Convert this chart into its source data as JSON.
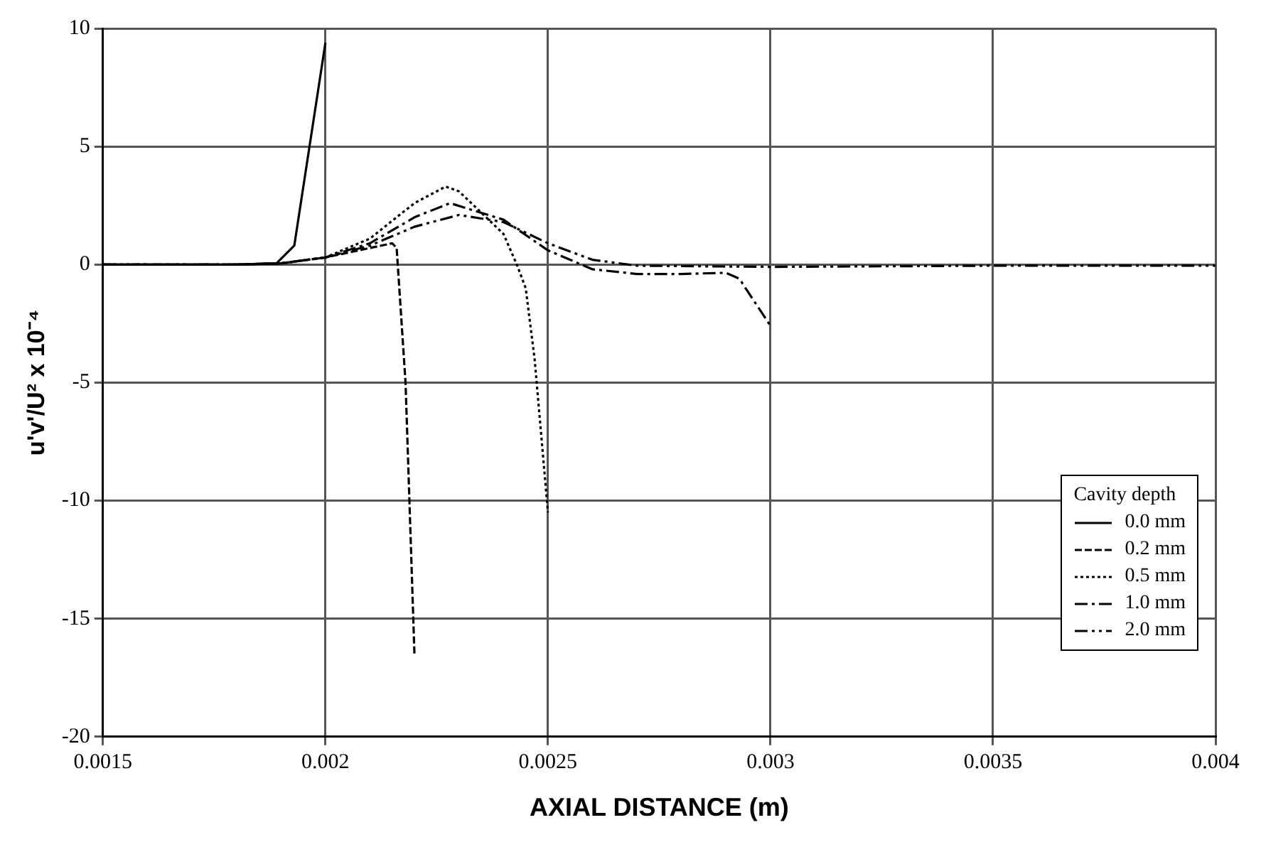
{
  "chart_data": {
    "type": "line",
    "xlabel": "AXIAL DISTANCE (m)",
    "ylabel": "u'v'/U² x 10⁻⁴",
    "legend_title": "Cavity depth",
    "xlim": [
      0.0015,
      0.004
    ],
    "xticks": [
      0.0015,
      0.002,
      0.0025,
      0.003,
      0.0035,
      0.004
    ],
    "ylim": [
      -20,
      10
    ],
    "yticks": [
      -20,
      -15,
      -10,
      -5,
      0,
      5,
      10
    ],
    "grid": true,
    "legend": "bottom right",
    "marker": "none",
    "series": [
      {
        "name": "0.0 mm",
        "color": "#000000",
        "line_style": "solid",
        "x": [
          0.0015,
          0.0018,
          0.00189,
          0.00193,
          0.002
        ],
        "values": [
          0,
          0,
          0.05,
          0.8,
          9.4
        ]
      },
      {
        "name": "0.2 mm",
        "color": "#000000",
        "line_style": "dashed",
        "x": [
          0.0015,
          0.0018,
          0.0019,
          0.002,
          0.0021,
          0.00215,
          0.00216,
          0.00218,
          0.0022
        ],
        "values": [
          0,
          0,
          0.05,
          0.3,
          0.7,
          0.9,
          0.7,
          -5,
          -16.5
        ]
      },
      {
        "name": "0.5 mm",
        "color": "#000000",
        "line_style": "dotted",
        "x": [
          0.0015,
          0.0018,
          0.0019,
          0.002,
          0.0021,
          0.0022,
          0.00227,
          0.0023,
          0.0024,
          0.00243,
          0.00245,
          0.00247,
          0.0025
        ],
        "values": [
          0,
          0,
          0.05,
          0.3,
          1.1,
          2.6,
          3.3,
          3.1,
          1.3,
          0,
          -1,
          -4,
          -10.5
        ]
      },
      {
        "name": "1.0 mm",
        "color": "#000000",
        "line_style": "dashdot",
        "x": [
          0.0015,
          0.0018,
          0.0019,
          0.002,
          0.0021,
          0.0022,
          0.00228,
          0.0024,
          0.0025,
          0.0026,
          0.0027,
          0.0028,
          0.0029,
          0.00293,
          0.003
        ],
        "values": [
          0,
          0,
          0.05,
          0.3,
          0.9,
          2,
          2.6,
          1.9,
          0.6,
          -0.2,
          -0.4,
          -0.4,
          -0.35,
          -0.6,
          -2.6
        ]
      },
      {
        "name": "2.0 mm",
        "color": "#000000",
        "line_style": "dashdotdot",
        "x": [
          0.0015,
          0.0018,
          0.0019,
          0.002,
          0.0021,
          0.0022,
          0.0023,
          0.0024,
          0.0025,
          0.0026,
          0.0027,
          0.003,
          0.0035,
          0.004
        ],
        "values": [
          0,
          0,
          0.05,
          0.3,
          0.8,
          1.6,
          2.1,
          1.8,
          0.9,
          0.2,
          -0.05,
          -0.1,
          -0.05,
          -0.05
        ]
      }
    ]
  }
}
